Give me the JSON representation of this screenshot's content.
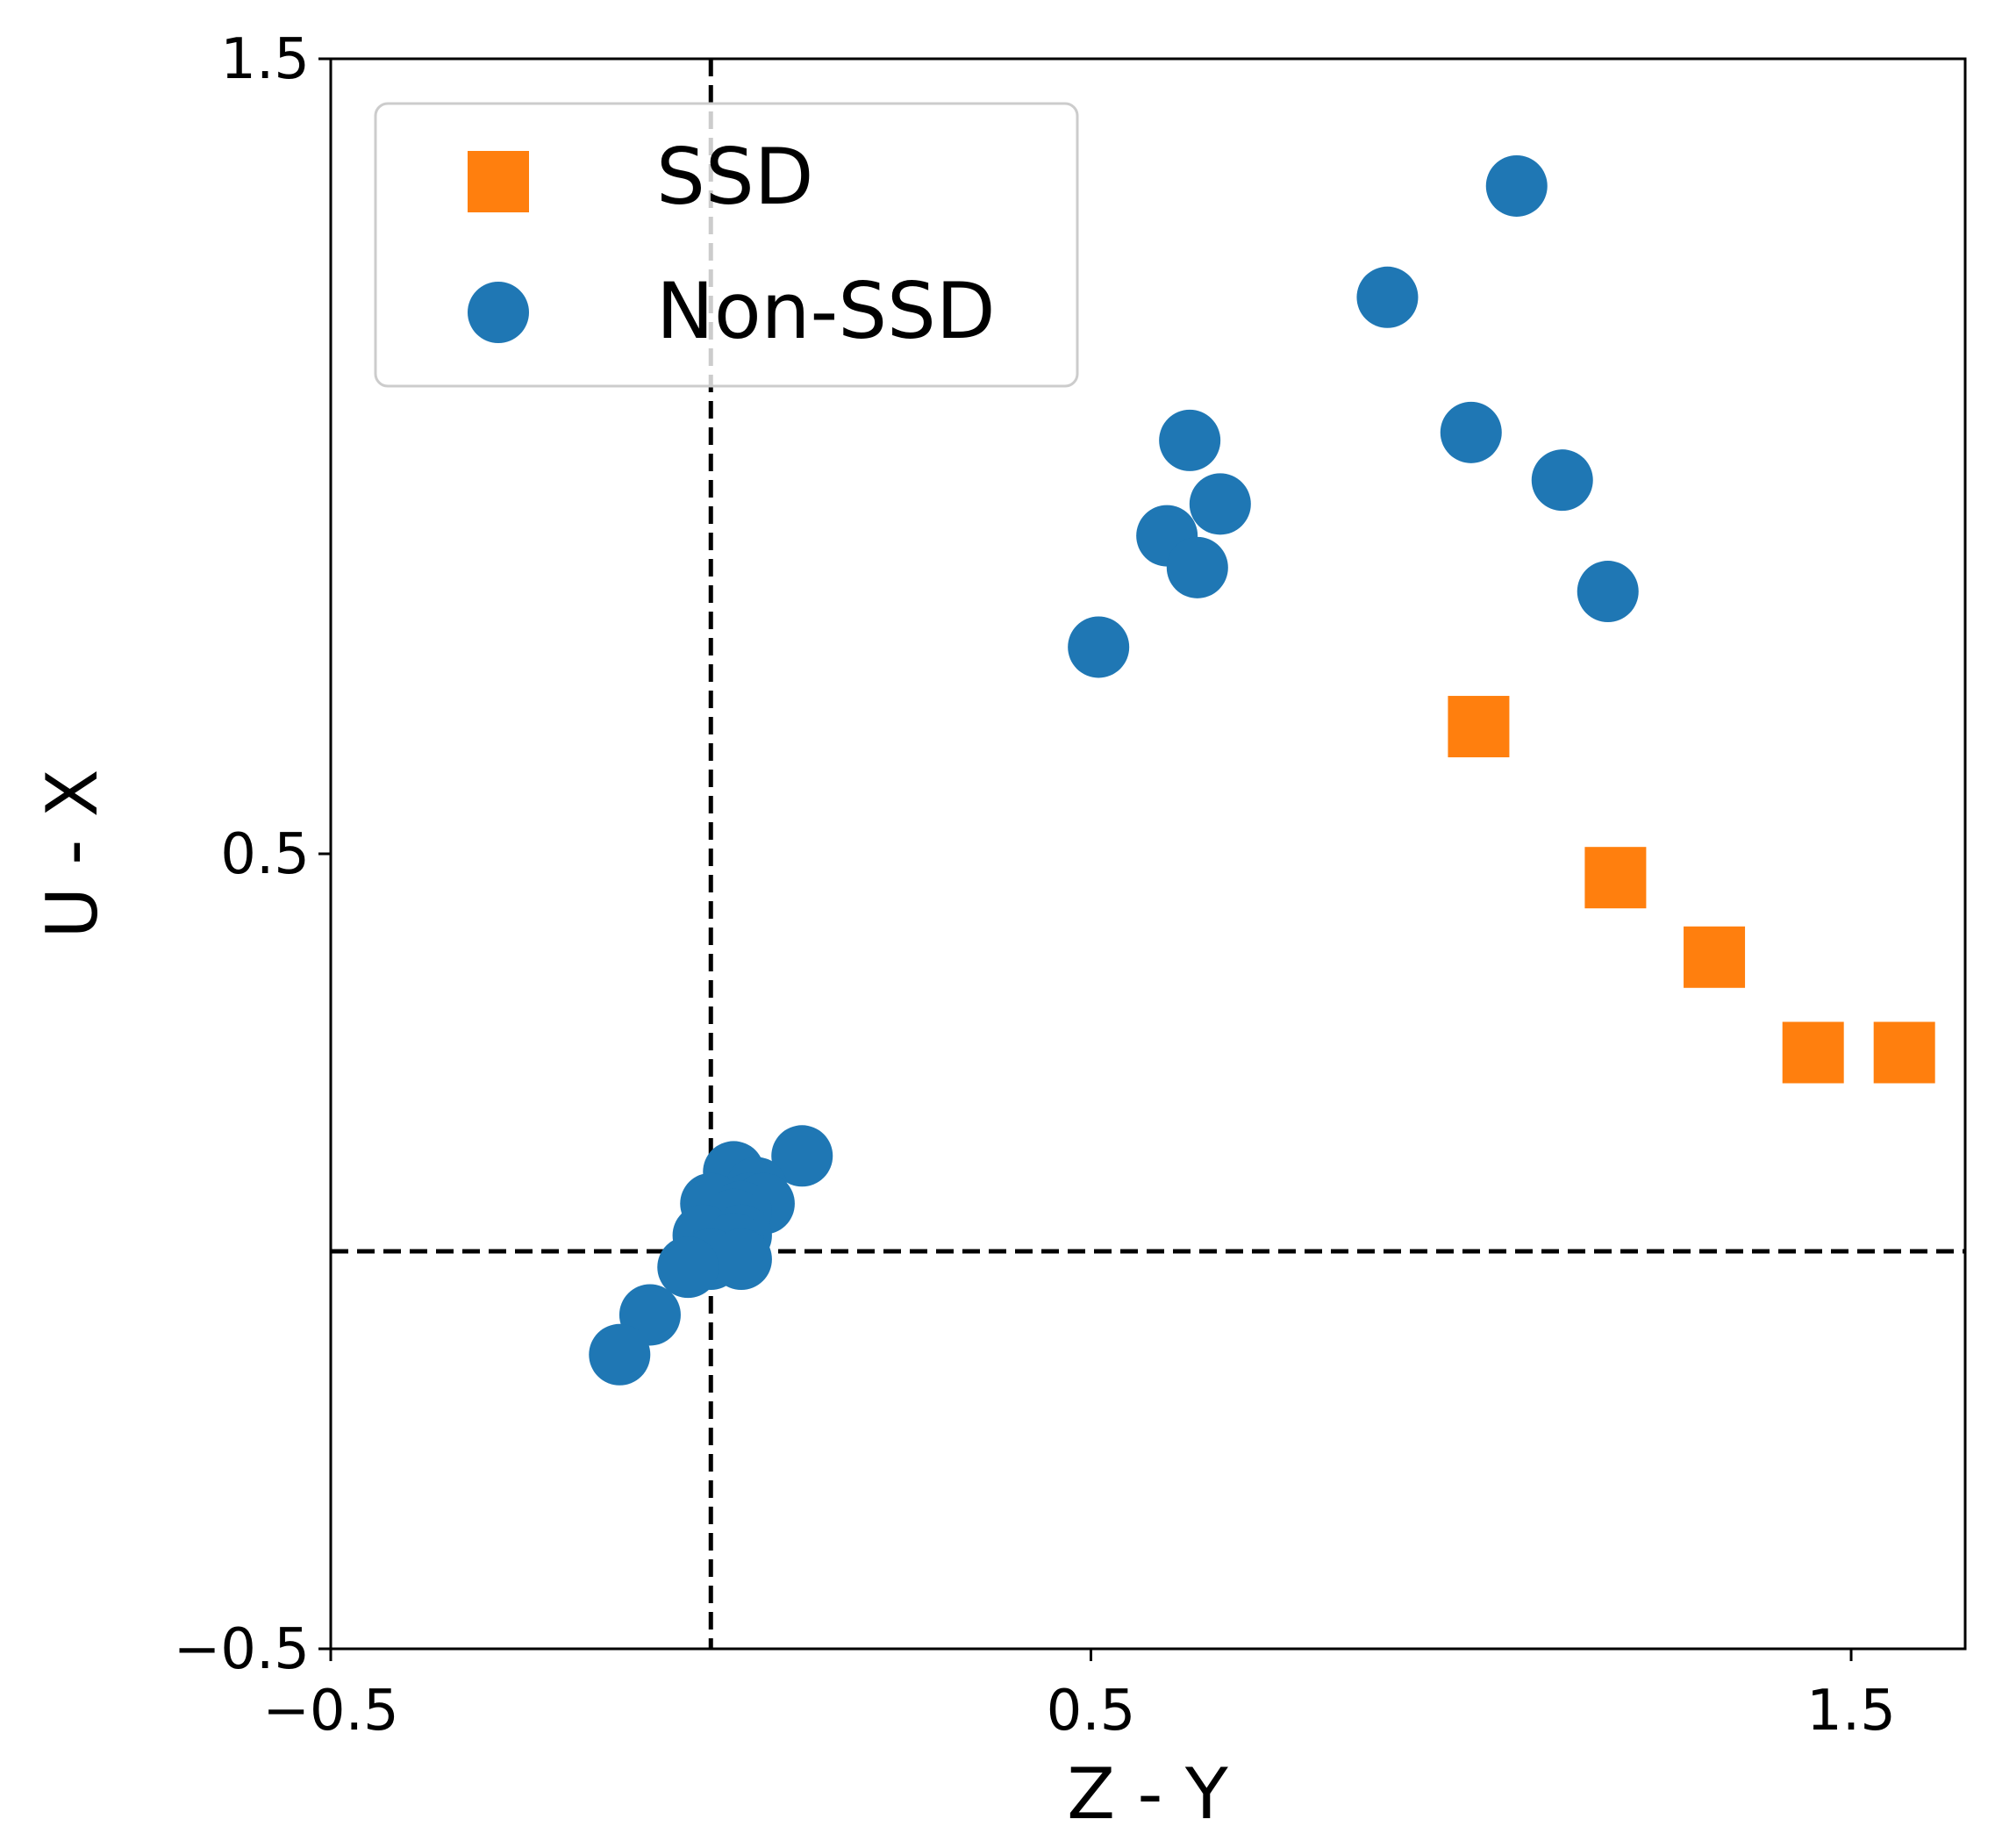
{
  "chart_data": {
    "type": "scatter",
    "xlabel": "Z - Y",
    "ylabel": "U - X",
    "xlim": [
      -0.5,
      1.65
    ],
    "ylim": [
      -0.5,
      1.5
    ],
    "x_ticks": [
      -0.5,
      0.5,
      1.5
    ],
    "y_ticks": [
      -0.5,
      0.5,
      1.5
    ],
    "x_tick_labels": [
      "−0.5",
      "0.5",
      "1.5"
    ],
    "y_tick_labels": [
      "−0.5",
      "0.5",
      "1.5"
    ],
    "reference_lines": {
      "vertical_x": 0.0,
      "horizontal_y": 0.0
    },
    "grid": false,
    "legend": {
      "location": "top-left"
    },
    "series": [
      {
        "name": "SSD",
        "marker": "square",
        "color": "#ff7f0e",
        "points": [
          [
            1.01,
            0.66
          ],
          [
            1.19,
            0.47
          ],
          [
            1.32,
            0.37
          ],
          [
            1.45,
            0.25
          ],
          [
            1.57,
            0.25
          ]
        ]
      },
      {
        "name": "Non-SSD",
        "marker": "circle",
        "color": "#1f77b4",
        "points": [
          [
            1.06,
            1.34
          ],
          [
            0.89,
            1.2
          ],
          [
            1.0,
            1.03
          ],
          [
            1.12,
            0.97
          ],
          [
            1.18,
            0.83
          ],
          [
            0.63,
            1.02
          ],
          [
            0.67,
            0.94
          ],
          [
            0.6,
            0.9
          ],
          [
            0.64,
            0.86
          ],
          [
            0.51,
            0.76
          ],
          [
            0.12,
            0.12
          ],
          [
            0.03,
            0.1
          ],
          [
            0.06,
            0.08
          ],
          [
            0.0,
            0.06
          ],
          [
            0.05,
            0.06
          ],
          [
            0.07,
            0.06
          ],
          [
            0.04,
            0.05
          ],
          [
            0.03,
            0.04
          ],
          [
            -0.01,
            0.02
          ],
          [
            0.04,
            0.02
          ],
          [
            0.03,
            0.01
          ],
          [
            0.0,
            -0.01
          ],
          [
            0.04,
            -0.01
          ],
          [
            -0.03,
            -0.02
          ],
          [
            -0.08,
            -0.08
          ],
          [
            -0.12,
            -0.13
          ]
        ]
      }
    ]
  }
}
